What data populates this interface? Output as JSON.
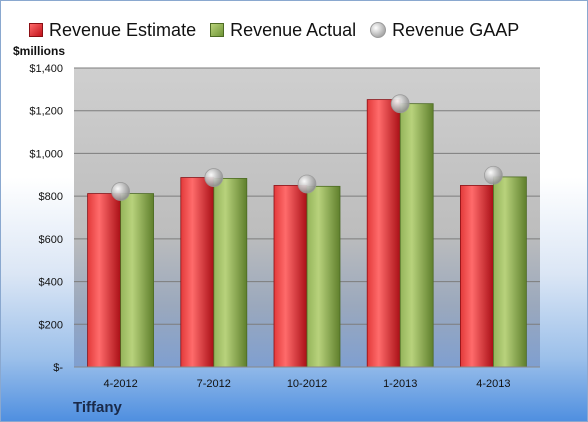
{
  "chart_data": {
    "type": "bar",
    "title": "",
    "ylabel": "$millions",
    "company": "Tiffany",
    "categories": [
      "4-2012",
      "7-2012",
      "10-2012",
      "1-2013",
      "4-2013"
    ],
    "series": [
      {
        "name": "Revenue Estimate",
        "type": "bar",
        "color": "#c1121a",
        "values": [
          812,
          887,
          850,
          1252,
          850
        ]
      },
      {
        "name": "Revenue Actual",
        "type": "bar",
        "color": "#7f9f3e",
        "values": [
          812,
          883,
          846,
          1233,
          890
        ]
      },
      {
        "name": "Revenue GAAP",
        "type": "marker",
        "color": "#b5b5b5",
        "values": [
          822,
          887,
          857,
          1233,
          898
        ]
      }
    ],
    "ylim": [
      0,
      1400
    ],
    "yticks": [
      0,
      200,
      400,
      600,
      800,
      1000,
      1200,
      1400
    ],
    "ytick_labels": [
      "$-",
      "$200",
      "$400",
      "$600",
      "$800",
      "$1,000",
      "$1,200",
      "$1,400"
    ],
    "grid": true,
    "legend_position": "top"
  }
}
